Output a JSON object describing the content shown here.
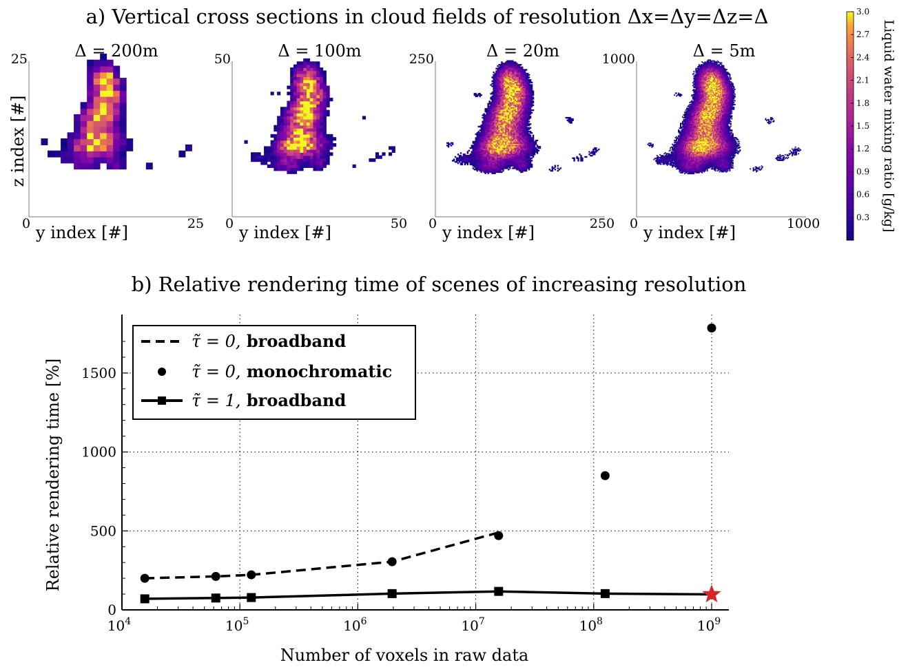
{
  "panel_a": {
    "title": "a) Vertical cross sections in cloud fields of resolution Δx=Δy=Δz=Δ",
    "ylabel": "z index [#]",
    "xlabel": "y index [#]",
    "panels": [
      {
        "label": "Δ = 200m",
        "xmin": "0",
        "xmax": "25",
        "ymax": "25",
        "grid": 25,
        "span": 1.0
      },
      {
        "label": "Δ = 100m",
        "xmin": "0",
        "xmax": "50",
        "ymax": "50",
        "grid": 50,
        "span": 0.92
      },
      {
        "label": "Δ = 20m",
        "xmin": "0",
        "xmax": "250",
        "ymax": "250",
        "grid": 120,
        "span": 1.0
      },
      {
        "label": "Δ = 5m",
        "xmin": "0",
        "xmax": "1000",
        "ymax": "1000",
        "grid": 160,
        "span": 1.0
      }
    ],
    "colorbar": {
      "label": "Liquid water mixing ratio [g/kg]",
      "ticks": [
        "3.0",
        "2.7",
        "2.4",
        "2.1",
        "1.8",
        "1.5",
        "1.2",
        "0.9",
        "0.6",
        "0.3"
      ],
      "range": [
        0,
        3.0
      ],
      "colormap": "plasma"
    }
  },
  "chart_data": {
    "type": "line",
    "title": "b) Relative rendering time of scenes of increasing resolution",
    "xlabel": "Number of voxels in raw data",
    "ylabel": "Relative rendering time [%]",
    "xscale": "log",
    "xlim": [
      10000,
      1400000000
    ],
    "ylim": [
      0,
      1870
    ],
    "x_tick_labels": [
      "10^4",
      "10^5",
      "10^6",
      "10^7",
      "10^8",
      "10^9"
    ],
    "y_tick_labels": [
      "0",
      "500",
      "1000",
      "1500"
    ],
    "grid": true,
    "legend_position": "top-left",
    "series": [
      {
        "name": "τ̃ = 0, broadband",
        "style": "dashed",
        "x": [
          15625,
          62500,
          125000,
          1953125,
          15625000
        ],
        "y": [
          200,
          212,
          222,
          305,
          490
        ]
      },
      {
        "name": "τ̃ = 0, monochromatic",
        "style": "dots",
        "x": [
          15625,
          62500,
          125000,
          1953125,
          15625000,
          125000000,
          1000000000
        ],
        "y": [
          200,
          212,
          222,
          305,
          470,
          850,
          1785
        ]
      },
      {
        "name": "τ̃ = 1, broadband",
        "style": "solid-square",
        "x": [
          15625,
          62500,
          125000,
          1953125,
          15625000,
          125000000,
          1000000000
        ],
        "y": [
          70,
          75,
          78,
          103,
          117,
          103,
          98
        ]
      }
    ],
    "highlight": {
      "x": 1000000000,
      "y": 98,
      "marker": "star",
      "color": "#d62728"
    }
  },
  "colors": {
    "line": "#000000",
    "star": "#d62728",
    "grid": "#000000"
  }
}
